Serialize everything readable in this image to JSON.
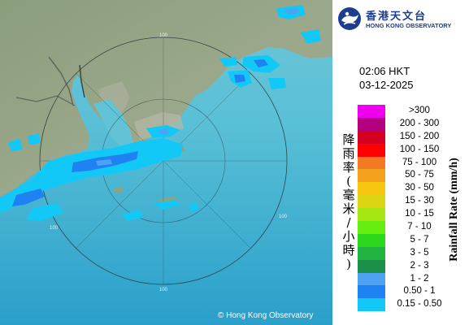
{
  "header": {
    "logo_cn": "香港天文台",
    "logo_en": "HONG KONG OBSERVATORY"
  },
  "timestamp": {
    "time": "02:06 HKT",
    "date": "03-12-2025"
  },
  "legend": {
    "title_cn": "降雨率(毫米/小時)",
    "title_en": "Rainfall Rate (mm/h)",
    "items": [
      {
        "label": ">300",
        "color": "#ee00ee"
      },
      {
        "label": "200 - 300",
        "color": "#b2007f"
      },
      {
        "label": "150 - 200",
        "color": "#d40022"
      },
      {
        "label": "100 - 150",
        "color": "#ff0000"
      },
      {
        "label": "75 - 100",
        "color": "#f37a22"
      },
      {
        "label": "50 - 75",
        "color": "#f3a01d"
      },
      {
        "label": "30 - 50",
        "color": "#f7c70f"
      },
      {
        "label": "15 - 30",
        "color": "#ddd514"
      },
      {
        "label": "10 - 15",
        "color": "#a6e613"
      },
      {
        "label": "7 - 10",
        "color": "#67ee11"
      },
      {
        "label": "5 - 7",
        "color": "#2bd81b"
      },
      {
        "label": "3 - 5",
        "color": "#22b441"
      },
      {
        "label": "2 - 3",
        "color": "#1b8f47"
      },
      {
        "label": "1 - 2",
        "color": "#4fa1f3"
      },
      {
        "label": "0.50 - 1",
        "color": "#1f82f2"
      },
      {
        "label": "0.15 - 0.50",
        "color": "#12c8f6"
      }
    ]
  },
  "map": {
    "range_labels": [
      "100",
      "100",
      "100",
      "100"
    ],
    "copyright": "© Hong Kong Observatory"
  }
}
